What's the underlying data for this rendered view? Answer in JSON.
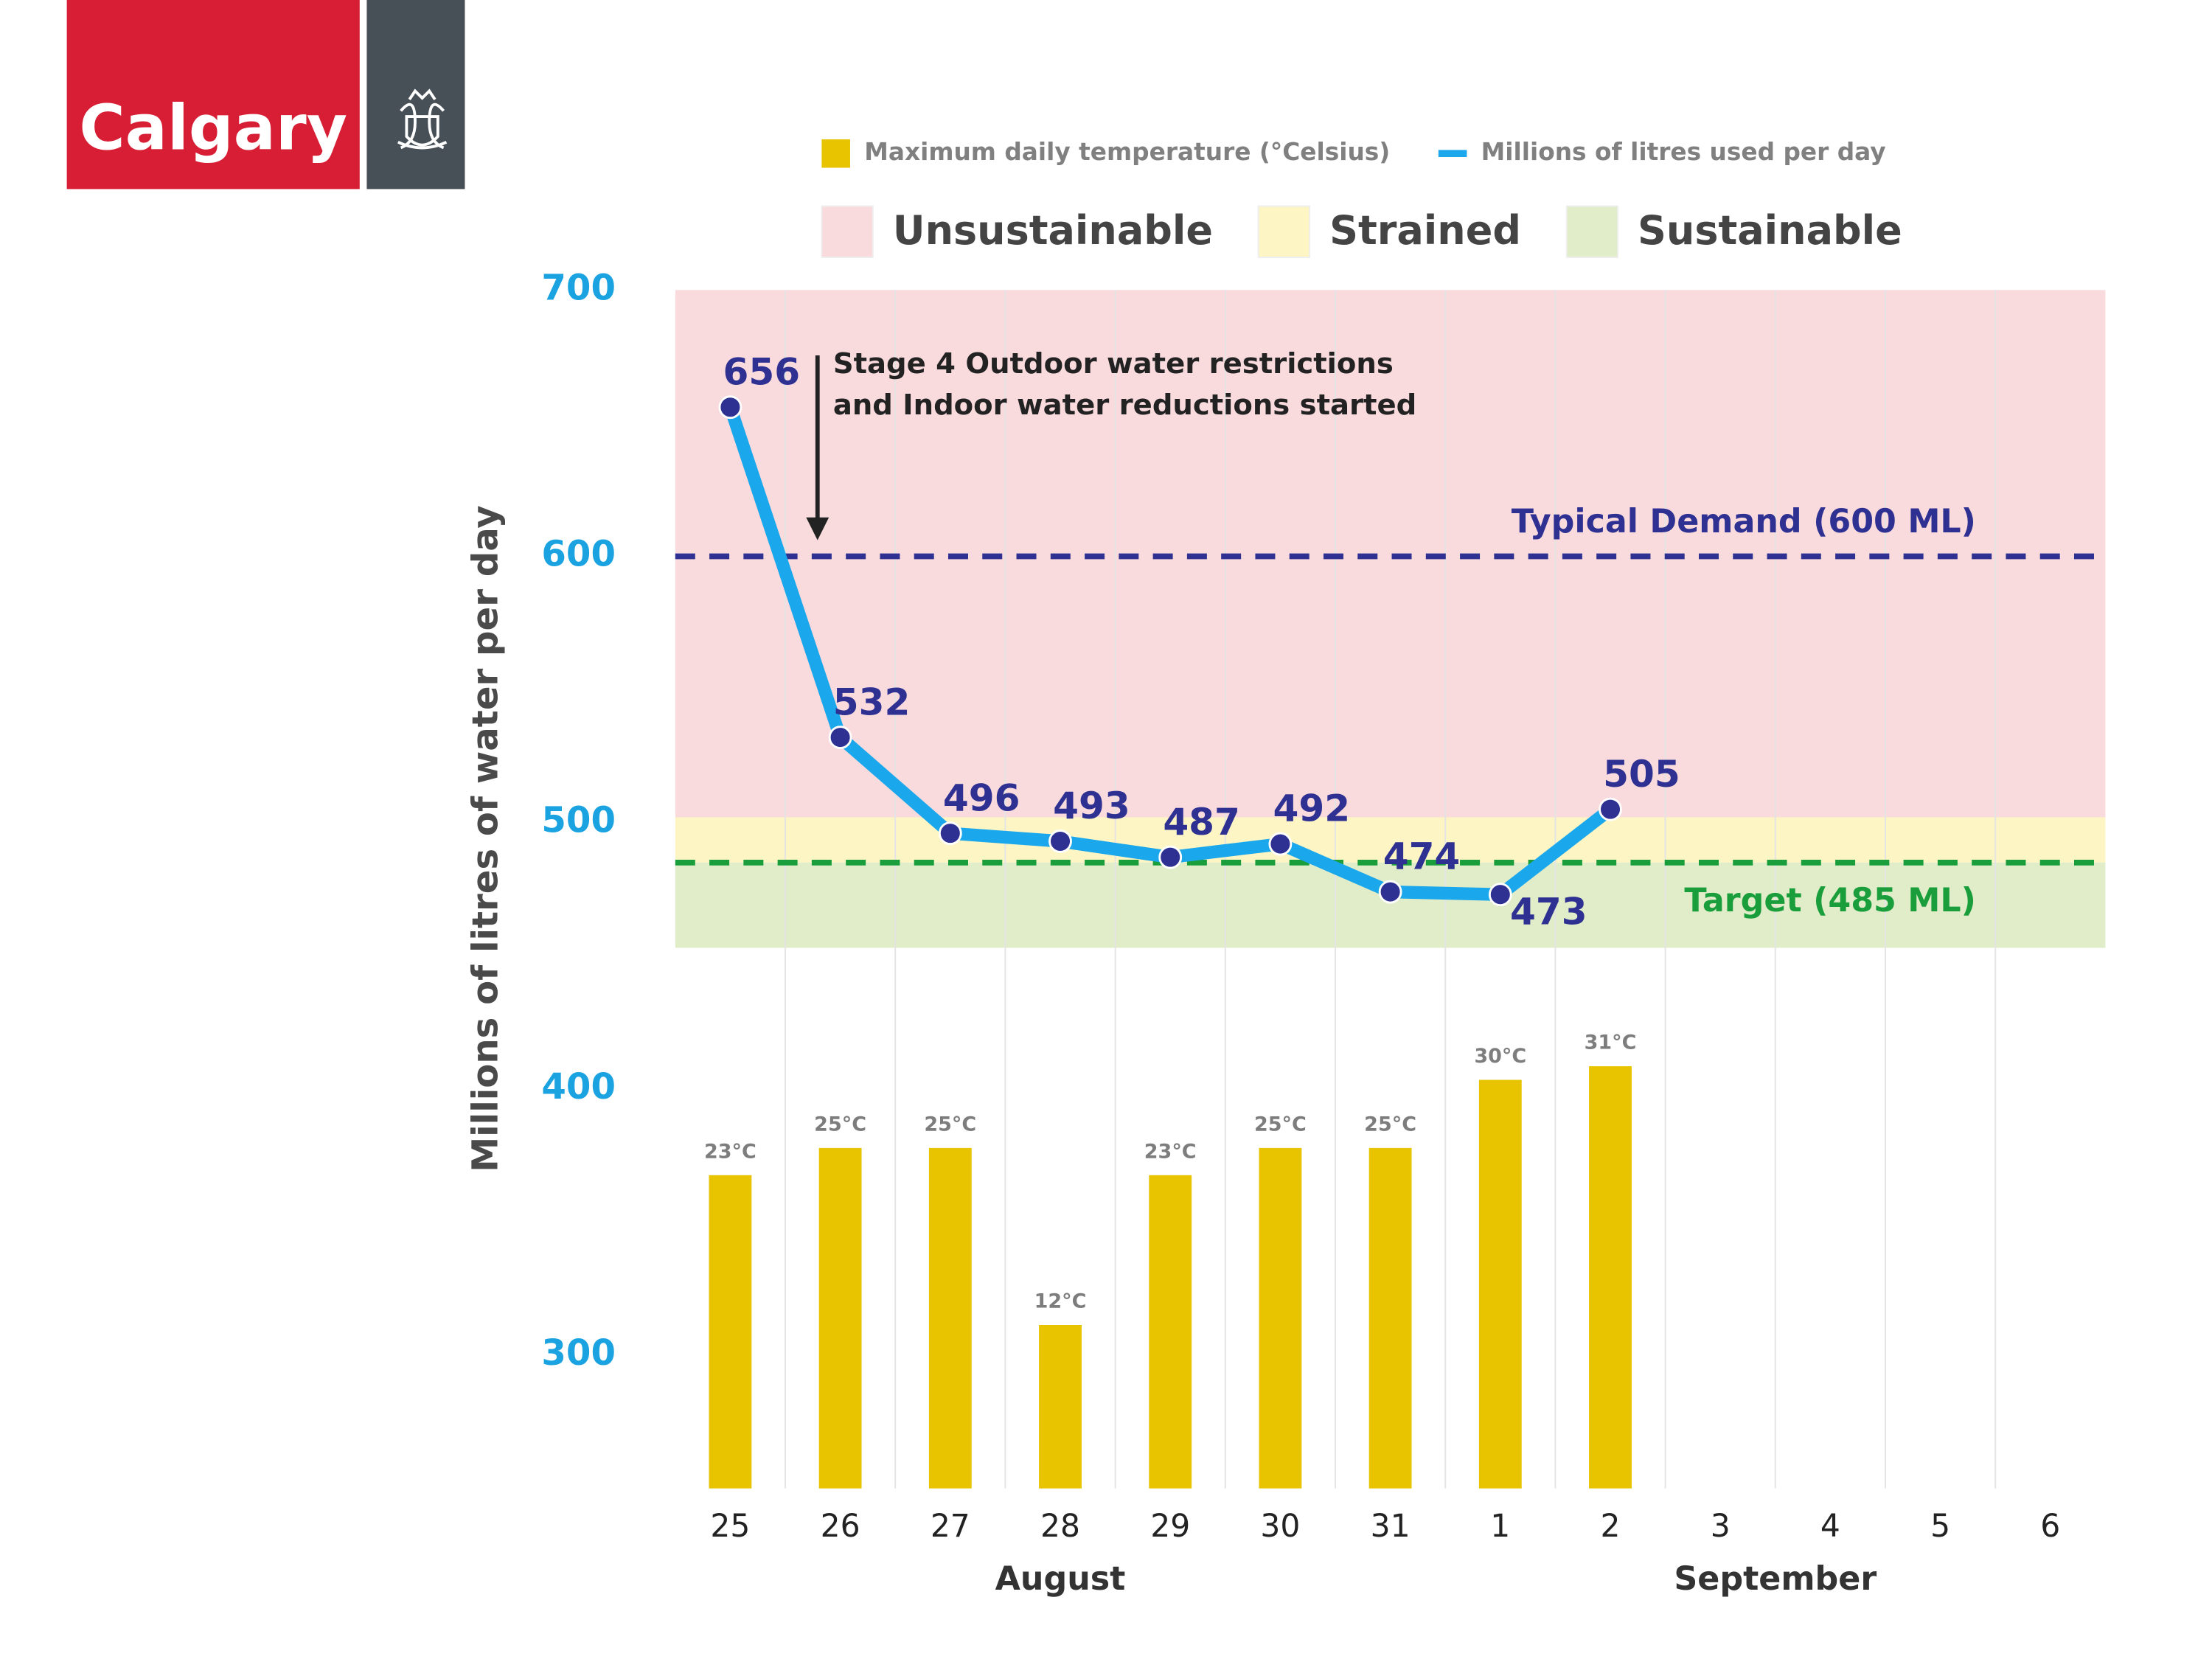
{
  "header": {
    "logo": "Calgary"
  },
  "chart_data": {
    "type": "line",
    "y_label": "Millions of litres of water per day",
    "categories": [
      "25",
      "26",
      "27",
      "28",
      "29",
      "30",
      "31",
      "1",
      "2",
      "3",
      "4",
      "5",
      "6"
    ],
    "months": [
      "August",
      "September"
    ],
    "ylim": [
      250,
      700
    ],
    "yticks": [
      300,
      400,
      500,
      600,
      700
    ],
    "y2lim": [
      0,
      88
    ],
    "y2ticks": [],
    "series": [
      {
        "name": "Maximum daily temperature (°Celsius)",
        "type": "bar",
        "axis": "y2",
        "color": "#e8c300",
        "values": [
          23,
          25,
          25,
          12,
          23,
          25,
          25,
          30,
          31,
          null,
          null,
          null,
          null
        ],
        "value_labels": [
          "23°C",
          "25°C",
          "25°C",
          "12°C",
          "23°C",
          "25°C",
          "25°C",
          "30°C",
          "31°C",
          null,
          null,
          null,
          null
        ]
      },
      {
        "name": "Millions of litres used per day",
        "type": "line",
        "color": "#1aa7ec",
        "marker_color": "#2e3192",
        "values": [
          656,
          532,
          496,
          493,
          487,
          492,
          474,
          473,
          505,
          null,
          null,
          null,
          null
        ]
      }
    ],
    "zones": [
      {
        "name": "Unsustainable",
        "color": "#f9dadd",
        "from": 502,
        "to": 700
      },
      {
        "name": "Strained",
        "color": "#fdf5c4",
        "from": 485,
        "to": 502
      },
      {
        "name": "Sustainable",
        "color": "#e0edc8",
        "from": 453,
        "to": 485
      }
    ],
    "reference_lines": [
      {
        "label": "Typical Demand (600 ML)",
        "value": 600,
        "color": "#2e3192"
      },
      {
        "label": "Target (485 ML)",
        "value": 485,
        "color": "#1a9e3c"
      }
    ],
    "annotation": [
      "Stage 4 Outdoor water restrictions",
      "and Indoor water reductions started"
    ]
  }
}
